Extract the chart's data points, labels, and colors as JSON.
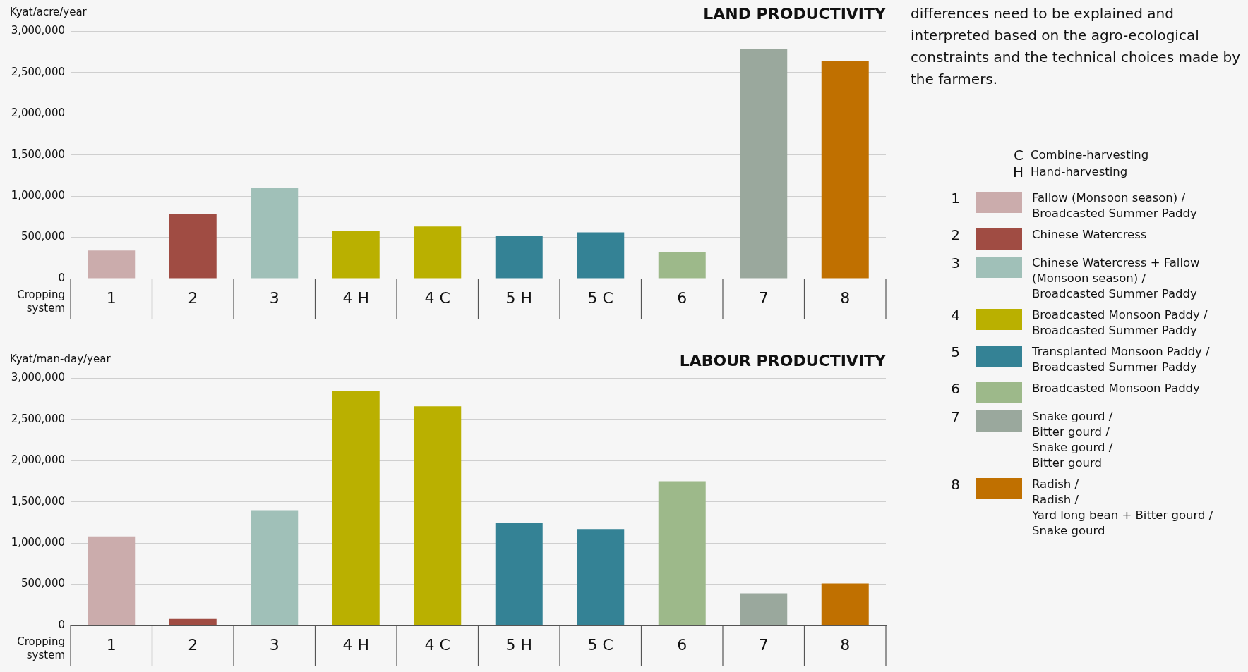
{
  "chart_data": [
    {
      "type": "bar",
      "title": "LAND PRODUCTIVITY",
      "ylabel": "Kyat/acre/year",
      "xlabel": "Cropping\nsystem",
      "categories": [
        "1",
        "2",
        "3",
        "4 H",
        "4 C",
        "5 H",
        "5 C",
        "6",
        "7",
        "8"
      ],
      "values": [
        340000,
        780000,
        1100000,
        580000,
        630000,
        520000,
        560000,
        320000,
        2780000,
        2640000
      ],
      "colors": [
        "#cbacac",
        "#a04c43",
        "#a0c0b8",
        "#bab000",
        "#bab000",
        "#348295",
        "#348295",
        "#9db98a",
        "#9aa89d",
        "#c07000"
      ],
      "ylim": [
        0,
        3000000
      ],
      "yticks": [
        0,
        {
          "value": 500000,
          "label": "500,000"
        },
        {
          "value": 1000000,
          "label": "1,000,000"
        },
        {
          "value": 1500000,
          "label": "1,500,000"
        },
        {
          "value": 2000000,
          "label": "2,000,000"
        },
        {
          "value": 2500000,
          "label": "2,500,000"
        },
        {
          "value": 3000000,
          "label": "3,000,000"
        }
      ],
      "grid": "y",
      "legend": false
    },
    {
      "type": "bar",
      "title": "LABOUR PRODUCTIVITY",
      "ylabel": "Kyat/man-day/year",
      "xlabel": "Cropping\nsystem",
      "categories": [
        "1",
        "2",
        "3",
        "4 H",
        "4 C",
        "5 H",
        "5 C",
        "6",
        "7",
        "8"
      ],
      "values": [
        1080000,
        80000,
        1400000,
        2850000,
        2660000,
        1240000,
        1170000,
        1750000,
        390000,
        510000
      ],
      "colors": [
        "#cbacac",
        "#a04c43",
        "#a0c0b8",
        "#bab000",
        "#bab000",
        "#348295",
        "#348295",
        "#9db98a",
        "#9aa89d",
        "#c07000"
      ],
      "ylim": [
        0,
        3000000
      ],
      "yticks": [
        0,
        {
          "value": 500000,
          "label": "500,000"
        },
        {
          "value": 1000000,
          "label": "1,000,000"
        },
        {
          "value": 1500000,
          "label": "1,500,000"
        },
        {
          "value": 2000000,
          "label": "2,000,000"
        },
        {
          "value": 2500000,
          "label": "2,500,000"
        },
        {
          "value": 3000000,
          "label": "3,000,000"
        }
      ],
      "grid": "y",
      "legend": false
    },
    {
      "type": "other",
      "title": "differences need to be explained and interpreted based on the agro-ecological constraints and the technical choices made by the farmers.",
      "legend_title": [
        "C",
        "Combine-harvesting",
        "H",
        "Hand-harvesting"
      ],
      "categories": [
        "1",
        "2",
        "3",
        "4",
        "5",
        "6",
        "7",
        "8"
      ],
      "colors": [
        "#cbacac",
        "#a04c43",
        "#a0c0b8",
        "#bab000",
        "#348295",
        "#9db98a",
        "#9aa89d",
        "#c07000"
      ],
      "annotations": [
        "Fallow (Monsoon season) /\nBroadcasted Summer Paddy",
        "Chinese Watercress",
        "Chinese Watercress + Fallow\n(Monsoon season) /\nBroadcasted Summer Paddy",
        "Broadcasted Monsoon Paddy /\nBroadcasted Summer Paddy",
        "Transplanted Monsoon Paddy /\nBroadcasted Summer Paddy",
        "Broadcasted Monsoon Paddy",
        "Snake gourd /\nBitter gourd /\nSnake gourd /\nBitter gourd",
        "Radish /\nRadish /\nYard long bean + Bitter gourd /\nSnake gourd"
      ]
    }
  ]
}
